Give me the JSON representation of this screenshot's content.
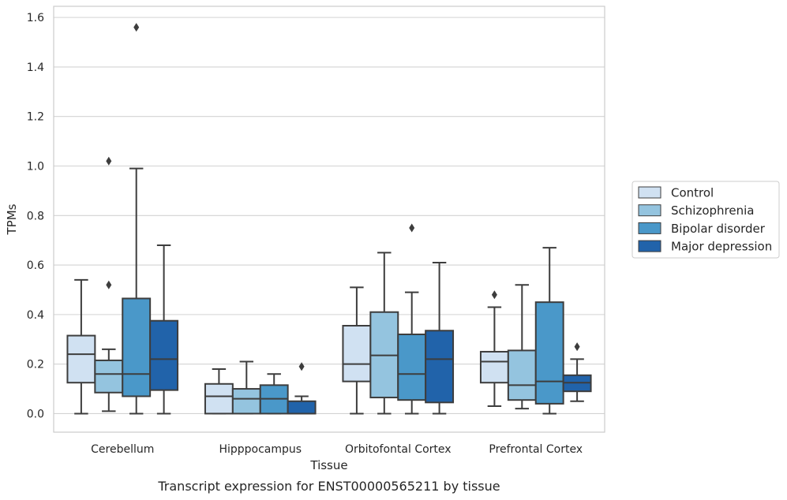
{
  "chart_data": {
    "type": "box",
    "title": "",
    "caption": "Transcript expression for ENST00000565211 by tissue",
    "xlabel": "Tissue",
    "ylabel": "TPMs",
    "ylim": [
      -0.075,
      1.645
    ],
    "yticks": [
      "0.0",
      "0.2",
      "0.4",
      "0.6",
      "0.8",
      "1.0",
      "1.2",
      "1.4",
      "1.6"
    ],
    "ytick_values": [
      0.0,
      0.2,
      0.4,
      0.6,
      0.8,
      1.0,
      1.2,
      1.4,
      1.6
    ],
    "grid": "horizontal",
    "legend_position": "right",
    "categories": [
      "Cerebellum",
      "Hipppocampus",
      "Orbitofontal Cortex",
      "Prefrontal Cortex"
    ],
    "series": [
      {
        "name": "Control",
        "color": "#d0e1f2",
        "boxes": [
          {
            "min": 0.0,
            "q1": 0.125,
            "median": 0.24,
            "q3": 0.315,
            "max": 0.54,
            "outliers": []
          },
          {
            "min": 0.0,
            "q1": 0.0,
            "median": 0.07,
            "q3": 0.12,
            "max": 0.18,
            "outliers": []
          },
          {
            "min": 0.0,
            "q1": 0.13,
            "median": 0.2,
            "q3": 0.355,
            "max": 0.51,
            "outliers": []
          },
          {
            "min": 0.03,
            "q1": 0.125,
            "median": 0.21,
            "q3": 0.25,
            "max": 0.43,
            "outliers": [
              0.48
            ]
          }
        ]
      },
      {
        "name": "Schizophrenia",
        "color": "#94c4df",
        "boxes": [
          {
            "min": 0.01,
            "q1": 0.085,
            "median": 0.16,
            "q3": 0.215,
            "max": 0.26,
            "outliers": [
              0.52,
              1.02
            ]
          },
          {
            "min": 0.0,
            "q1": 0.0,
            "median": 0.06,
            "q3": 0.1,
            "max": 0.21,
            "outliers": []
          },
          {
            "min": 0.0,
            "q1": 0.065,
            "median": 0.235,
            "q3": 0.41,
            "max": 0.65,
            "outliers": []
          },
          {
            "min": 0.02,
            "q1": 0.055,
            "median": 0.115,
            "q3": 0.255,
            "max": 0.52,
            "outliers": []
          }
        ]
      },
      {
        "name": "Bipolar disorder",
        "color": "#4a98c9",
        "boxes": [
          {
            "min": 0.0,
            "q1": 0.07,
            "median": 0.16,
            "q3": 0.465,
            "max": 0.99,
            "outliers": [
              1.56
            ]
          },
          {
            "min": 0.0,
            "q1": 0.0,
            "median": 0.06,
            "q3": 0.115,
            "max": 0.16,
            "outliers": []
          },
          {
            "min": 0.0,
            "q1": 0.055,
            "median": 0.16,
            "q3": 0.32,
            "max": 0.49,
            "outliers": [
              0.75
            ]
          },
          {
            "min": 0.0,
            "q1": 0.04,
            "median": 0.13,
            "q3": 0.45,
            "max": 0.67,
            "outliers": []
          }
        ]
      },
      {
        "name": "Major depression",
        "color": "#2163aa",
        "boxes": [
          {
            "min": 0.0,
            "q1": 0.095,
            "median": 0.22,
            "q3": 0.375,
            "max": 0.68,
            "outliers": []
          },
          {
            "min": 0.0,
            "q1": 0.0,
            "median": 0.0,
            "q3": 0.05,
            "max": 0.07,
            "outliers": [
              0.19
            ]
          },
          {
            "min": 0.0,
            "q1": 0.045,
            "median": 0.22,
            "q3": 0.335,
            "max": 0.61,
            "outliers": []
          },
          {
            "min": 0.05,
            "q1": 0.09,
            "median": 0.125,
            "q3": 0.155,
            "max": 0.22,
            "outliers": [
              0.27
            ]
          }
        ]
      }
    ]
  }
}
